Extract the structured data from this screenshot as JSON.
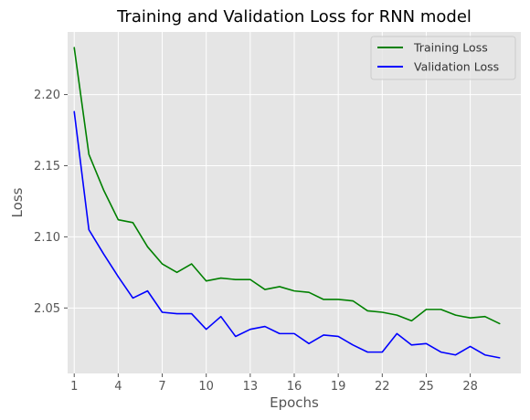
{
  "chart_data": {
    "type": "line",
    "title": "Training and Validation Loss for RNN model",
    "xlabel": "Epochs",
    "ylabel": "Loss",
    "xlim": [
      -0.45,
      30.45
    ],
    "ylim": [
      2.004,
      2.244
    ],
    "xticks": [
      0,
      3,
      6,
      9,
      12,
      15,
      18,
      21,
      24,
      27
    ],
    "xtick_labels": [
      "1",
      "4",
      "7",
      "10",
      "13",
      "16",
      "19",
      "22",
      "25",
      "28"
    ],
    "yticks": [
      2.05,
      2.1,
      2.15,
      2.2
    ],
    "ytick_labels": [
      "2.05",
      "2.10",
      "2.15",
      "2.20"
    ],
    "grid": true,
    "legend_position": "upper right",
    "x": [
      0,
      1,
      2,
      3,
      4,
      5,
      6,
      7,
      8,
      9,
      10,
      11,
      12,
      13,
      14,
      15,
      16,
      17,
      18,
      19,
      20,
      21,
      22,
      23,
      24,
      25,
      26,
      27,
      28,
      29
    ],
    "series": [
      {
        "name": "Training Loss",
        "color": "#008000",
        "values": [
          2.233,
          2.158,
          2.133,
          2.112,
          2.11,
          2.093,
          2.081,
          2.075,
          2.081,
          2.069,
          2.071,
          2.07,
          2.07,
          2.063,
          2.065,
          2.062,
          2.061,
          2.056,
          2.056,
          2.055,
          2.048,
          2.047,
          2.045,
          2.041,
          2.049,
          2.049,
          2.045,
          2.043,
          2.044,
          2.039
        ]
      },
      {
        "name": "Validation Loss",
        "color": "#0000ff",
        "values": [
          2.188,
          2.105,
          2.088,
          2.072,
          2.057,
          2.062,
          2.047,
          2.046,
          2.046,
          2.035,
          2.044,
          2.03,
          2.035,
          2.037,
          2.032,
          2.032,
          2.025,
          2.031,
          2.03,
          2.024,
          2.019,
          2.019,
          2.032,
          2.024,
          2.025,
          2.019,
          2.017,
          2.023,
          2.017,
          2.015
        ]
      }
    ]
  }
}
